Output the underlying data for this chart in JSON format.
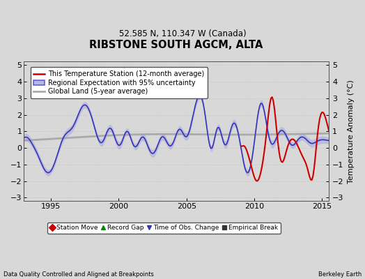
{
  "title": "RIBSTONE SOUTH AGCM, ALTA",
  "subtitle": "52.585 N, 110.347 W (Canada)",
  "ylabel": "Temperature Anomaly (°C)",
  "footer_left": "Data Quality Controlled and Aligned at Breakpoints",
  "footer_right": "Berkeley Earth",
  "xlim": [
    1993.0,
    2015.5
  ],
  "ylim": [
    -3.2,
    5.2
  ],
  "yticks": [
    -3,
    -2,
    -1,
    0,
    1,
    2,
    3,
    4,
    5
  ],
  "xticks": [
    1995,
    2000,
    2005,
    2010,
    2015
  ],
  "bg_color": "#d8d8d8",
  "legend_entries": [
    {
      "label": "This Temperature Station (12-month average)",
      "color": "#cc0000"
    },
    {
      "label": "Regional Expectation with 95% uncertainty",
      "color": "#3333bb"
    },
    {
      "label": "Global Land (5-year average)",
      "color": "#aaaaaa"
    }
  ],
  "marker_legend": [
    {
      "label": "Station Move",
      "marker": "D",
      "color": "#cc0000"
    },
    {
      "label": "Record Gap",
      "marker": "^",
      "color": "#008800"
    },
    {
      "label": "Time of Obs. Change",
      "marker": "v",
      "color": "#3333bb"
    },
    {
      "label": "Empirical Break",
      "marker": "s",
      "color": "#333333"
    }
  ]
}
